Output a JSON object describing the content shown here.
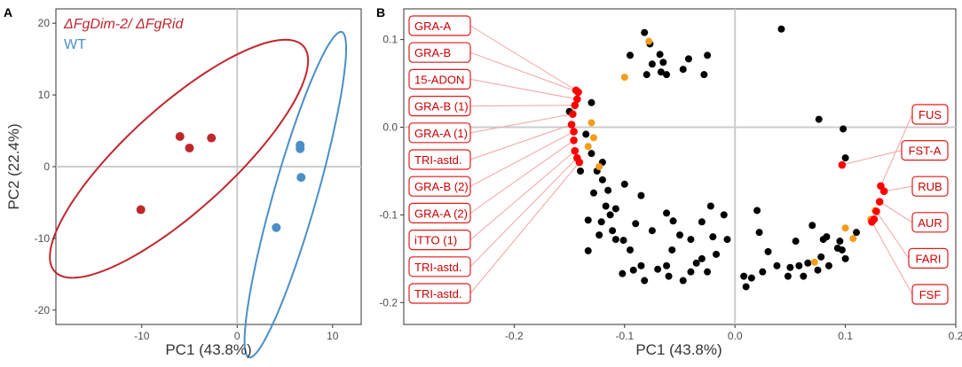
{
  "chart_data": [
    {
      "type": "scatter",
      "panel_label": "A",
      "xlabel": "PC1 (43.8%)",
      "ylabel": "PC2 (22.4%)",
      "xlim": [
        -19,
        13
      ],
      "ylim": [
        -22,
        22
      ],
      "xticks": [
        -10,
        0,
        10
      ],
      "yticks": [
        -20,
        -10,
        0,
        10,
        20
      ],
      "grid": "zero lines only",
      "legend": {
        "position": "top-left",
        "entries": [
          {
            "name": "ΔFgDim-2/ ΔFgRid",
            "color": "#c0272d"
          },
          {
            "name": "WT",
            "color": "#4a8fc8"
          }
        ]
      },
      "series": [
        {
          "name": "ΔFgDim-2/ ΔFgRid",
          "color": "#c0272d",
          "points": [
            [
              -6,
              4.2
            ],
            [
              -5,
              2.6
            ],
            [
              -2.7,
              4
            ],
            [
              -10.1,
              -6
            ]
          ],
          "ellipse": {
            "center": [
              -6.1,
              1.1
            ],
            "semi_major": 20.5,
            "semi_minor": 6.2,
            "angle_deg": 52
          }
        },
        {
          "name": "WT",
          "color": "#4a8fc8",
          "points": [
            [
              6.6,
              3
            ],
            [
              6.6,
              2.5
            ],
            [
              6.7,
              -1.5
            ],
            [
              4.1,
              -8.5
            ]
          ],
          "ellipse": {
            "center": [
              6.1,
              -3.9
            ],
            "semi_major": 23.2,
            "semi_minor": 2.3,
            "angle_deg": 78
          }
        }
      ]
    },
    {
      "type": "scatter",
      "panel_label": "B",
      "xlabel": "PC1 (43.8%)",
      "ylabel": "",
      "xlim": [
        -0.3,
        0.2
      ],
      "ylim": [
        -0.225,
        0.135
      ],
      "xticks": [
        -0.2,
        -0.1,
        0.0,
        0.1,
        0.2
      ],
      "yticks": [
        -0.2,
        -0.1,
        0.0,
        0.1
      ],
      "tick_labels_x": [
        "-0.2",
        "-0.1",
        "0.0",
        "0.1",
        "0.2"
      ],
      "tick_labels_y": [
        "-0.2",
        "-0.1",
        "0.0",
        "0.1"
      ],
      "grid": "zero lines only",
      "black_points": [
        [
          -0.082,
          0.108
        ],
        [
          -0.077,
          0.095
        ],
        [
          -0.095,
          0.082
        ],
        [
          -0.068,
          0.083
        ],
        [
          -0.065,
          0.074
        ],
        [
          -0.042,
          0.078
        ],
        [
          -0.075,
          0.072
        ],
        [
          -0.062,
          0.06
        ],
        [
          -0.08,
          0.06
        ],
        [
          -0.047,
          0.066
        ],
        [
          -0.025,
          0.082
        ],
        [
          -0.028,
          0.06
        ],
        [
          -0.067,
          0.063
        ],
        [
          0.042,
          0.112
        ],
        [
          -0.13,
          0.028
        ],
        [
          -0.135,
          -0.008
        ],
        [
          -0.13,
          -0.03
        ],
        [
          -0.14,
          -0.05
        ],
        [
          -0.12,
          -0.06
        ],
        [
          -0.128,
          -0.075
        ],
        [
          -0.1,
          -0.065
        ],
        [
          -0.085,
          -0.078
        ],
        [
          -0.117,
          -0.09
        ],
        [
          -0.108,
          -0.093
        ],
        [
          -0.133,
          -0.106
        ],
        [
          -0.121,
          -0.108
        ],
        [
          -0.113,
          -0.1
        ],
        [
          -0.123,
          -0.123
        ],
        [
          -0.111,
          -0.118
        ],
        [
          -0.108,
          -0.128
        ],
        [
          -0.133,
          -0.141
        ],
        [
          -0.101,
          -0.129
        ],
        [
          -0.075,
          -0.118
        ],
        [
          -0.09,
          -0.11
        ],
        [
          -0.062,
          -0.098
        ],
        [
          -0.056,
          -0.107
        ],
        [
          -0.05,
          -0.123
        ],
        [
          -0.04,
          -0.128
        ],
        [
          -0.03,
          -0.108
        ],
        [
          -0.022,
          -0.09
        ],
        [
          -0.01,
          -0.1
        ],
        [
          -0.007,
          -0.128
        ],
        [
          -0.02,
          -0.125
        ],
        [
          -0.03,
          -0.15
        ],
        [
          -0.017,
          -0.145
        ],
        [
          -0.057,
          -0.14
        ],
        [
          -0.062,
          -0.158
        ],
        [
          -0.07,
          -0.162
        ],
        [
          -0.085,
          -0.158
        ],
        [
          -0.092,
          -0.163
        ],
        [
          -0.102,
          -0.167
        ],
        [
          -0.082,
          -0.175
        ],
        [
          -0.06,
          -0.17
        ],
        [
          -0.035,
          -0.155
        ],
        [
          -0.047,
          -0.175
        ],
        [
          -0.04,
          -0.165
        ],
        [
          -0.025,
          -0.165
        ],
        [
          0.008,
          -0.17
        ],
        [
          0.015,
          -0.172
        ],
        [
          0.025,
          -0.165
        ],
        [
          0.038,
          -0.158
        ],
        [
          0.03,
          -0.142
        ],
        [
          0.05,
          -0.16
        ],
        [
          0.058,
          -0.158
        ],
        [
          0.066,
          -0.155
        ],
        [
          0.048,
          -0.17
        ],
        [
          0.062,
          -0.17
        ],
        [
          0.075,
          -0.163
        ],
        [
          0.085,
          -0.158
        ],
        [
          0.078,
          -0.148
        ],
        [
          0.022,
          -0.12
        ],
        [
          0.02,
          -0.095
        ],
        [
          0.055,
          -0.13
        ],
        [
          0.07,
          -0.112
        ],
        [
          0.08,
          -0.128
        ],
        [
          0.1,
          -0.15
        ],
        [
          0.097,
          -0.14
        ],
        [
          0.093,
          -0.138
        ],
        [
          0.095,
          -0.13
        ],
        [
          0.083,
          -0.125
        ],
        [
          0.11,
          -0.12
        ],
        [
          0.076,
          0.009
        ],
        [
          0.098,
          -0.002
        ],
        [
          0.1,
          -0.035
        ],
        [
          -0.15,
          0.018
        ],
        [
          -0.12,
          -0.04
        ],
        [
          -0.115,
          -0.072
        ],
        [
          -0.125,
          -0.05
        ],
        [
          -0.095,
          -0.14
        ],
        [
          0.01,
          -0.182
        ]
      ],
      "orange_points": [
        [
          -0.078,
          0.098
        ],
        [
          -0.1,
          0.057
        ],
        [
          -0.13,
          0.005
        ],
        [
          -0.128,
          -0.012
        ],
        [
          -0.133,
          -0.022
        ],
        [
          -0.123,
          -0.045
        ],
        [
          0.072,
          -0.154
        ],
        [
          0.1,
          -0.115
        ],
        [
          0.107,
          -0.127
        ],
        [
          0.123,
          -0.105
        ],
        [
          0.127,
          -0.095
        ]
      ],
      "red_points": [
        [
          -0.144,
          0.042
        ],
        [
          -0.142,
          0.04
        ],
        [
          -0.143,
          0.032
        ],
        [
          -0.145,
          0.025
        ],
        [
          -0.147,
          0.015
        ],
        [
          -0.148,
          0.003
        ],
        [
          -0.146,
          -0.005
        ],
        [
          -0.146,
          -0.015
        ],
        [
          -0.145,
          -0.027
        ],
        [
          -0.143,
          -0.035
        ],
        [
          -0.141,
          -0.04
        ],
        [
          0.097,
          -0.043
        ],
        [
          0.132,
          -0.067
        ],
        [
          0.135,
          -0.073
        ],
        [
          0.131,
          -0.085
        ],
        [
          0.128,
          -0.096
        ],
        [
          0.126,
          -0.105
        ],
        [
          0.124,
          -0.108
        ]
      ],
      "left_labels": [
        "GRA-A",
        "GRA-B",
        "15-ADON",
        "GRA-B (1)",
        "GRA-A (1)",
        "TRI-astd.",
        "GRA-B (2)",
        "GRA-A (2)",
        "iTTO (1)",
        "TRI-astd.",
        "TRI-astd."
      ],
      "left_targets": [
        [
          -0.144,
          0.042
        ],
        [
          -0.142,
          0.04
        ],
        [
          -0.143,
          0.032
        ],
        [
          -0.145,
          0.025
        ],
        [
          -0.147,
          0.015
        ],
        [
          -0.148,
          0.003
        ],
        [
          -0.146,
          -0.005
        ],
        [
          -0.146,
          -0.015
        ],
        [
          -0.145,
          -0.027
        ],
        [
          -0.143,
          -0.035
        ],
        [
          -0.141,
          -0.04
        ]
      ],
      "right_labels": [
        "FUS",
        "FST-A",
        "RUB",
        "AUR",
        "FARI",
        "FSF"
      ],
      "right_targets": [
        [
          0.132,
          -0.067
        ],
        [
          0.097,
          -0.043
        ],
        [
          0.135,
          -0.073
        ],
        [
          0.131,
          -0.085
        ],
        [
          0.128,
          -0.096
        ],
        [
          0.124,
          -0.108
        ]
      ],
      "colors": {
        "black": "#000000",
        "orange": "#f59c1a",
        "red": "#ff0000"
      }
    }
  ]
}
